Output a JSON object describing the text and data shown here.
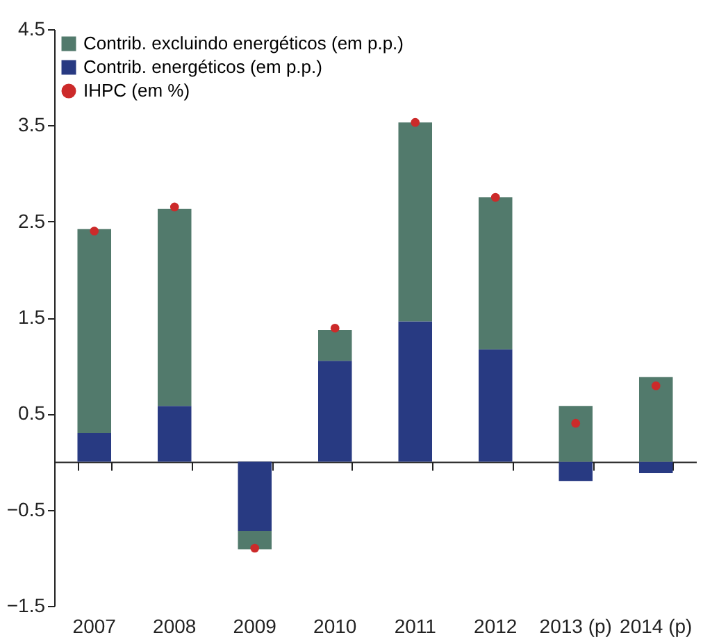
{
  "chart_data": {
    "type": "bar",
    "stacked": true,
    "categories": [
      "2007",
      "2008",
      "2009",
      "2010",
      "2011",
      "2012",
      "2013  (p)",
      "2014  (p)"
    ],
    "series": [
      {
        "name": "Contrib. energéticos (em p.p.)",
        "color": "#283a82",
        "values": [
          0.3,
          0.58,
          -0.72,
          1.05,
          1.46,
          1.17,
          -0.2,
          -0.12
        ]
      },
      {
        "name": "Contrib. excluindo energéticos (em p.p.)",
        "color": "#527a6c",
        "values": [
          2.12,
          2.05,
          -0.19,
          0.32,
          2.07,
          1.58,
          0.58,
          0.88
        ]
      },
      {
        "name": "IHPC (em %)",
        "type": "scatter",
        "color": "#cc2a2a",
        "values": [
          2.4,
          2.65,
          -0.9,
          1.39,
          3.53,
          2.75,
          0.4,
          0.79
        ]
      }
    ],
    "ylim": [
      -1.5,
      4.5
    ],
    "yticks": [
      4.5,
      3.5,
      2.5,
      1.5,
      0.5,
      -0.5,
      -1.5
    ],
    "grid": false,
    "legend": "top left",
    "marker": "circle"
  }
}
